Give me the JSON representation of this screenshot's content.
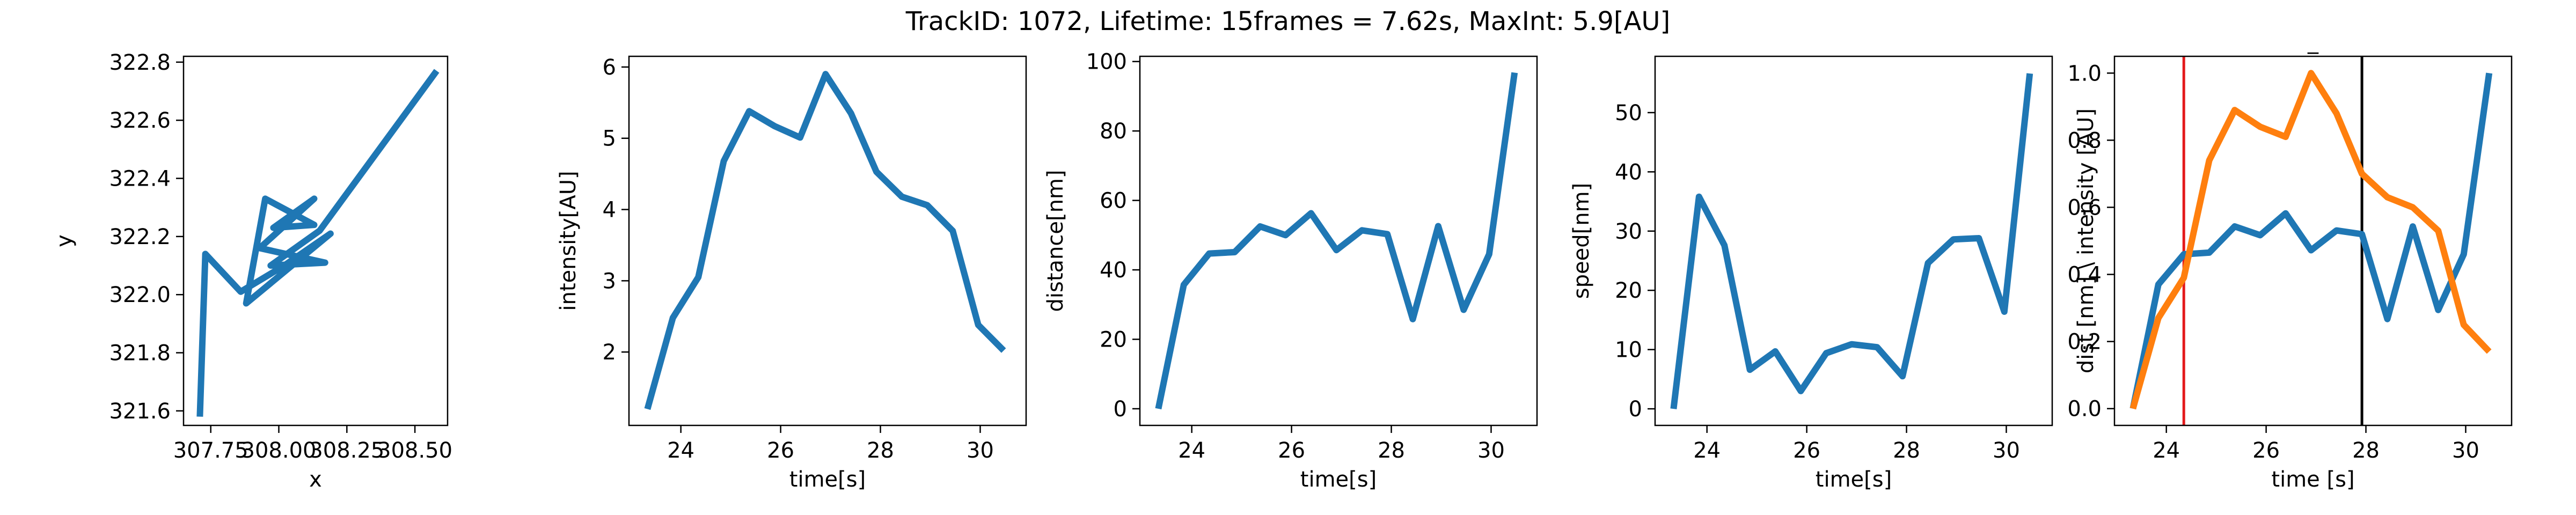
{
  "figure": {
    "title": "TrackID: 1072, Lifetime: 15frames = 7.62s, MaxInt: 5.9[AU]"
  },
  "colors": {
    "series_blue": "#1f77b4",
    "series_orange": "#ff7f0e",
    "line_red": "#e31a1c",
    "line_black": "#000000"
  },
  "chart_data": [
    {
      "type": "line",
      "title": "",
      "xlabel": "x",
      "ylabel": "y",
      "xlim": [
        307.65,
        308.62
      ],
      "ylim": [
        321.55,
        322.82
      ],
      "xticks": [
        "307.75",
        "308.00",
        "308.25",
        "308.50"
      ],
      "xtick_values": [
        307.75,
        308.0,
        308.25,
        308.5
      ],
      "yticks": [
        "321.6",
        "321.8",
        "322.0",
        "322.2",
        "322.4",
        "322.6",
        "322.8"
      ],
      "ytick_values": [
        321.6,
        321.8,
        322.0,
        322.2,
        322.4,
        322.6,
        322.8
      ],
      "series": [
        {
          "x": [
            307.71,
            307.73,
            307.86,
            308.02,
            308.19,
            307.88,
            307.95,
            308.13,
            307.98,
            308.13,
            307.93,
            308.17,
            307.97,
            308.15,
            308.58
          ],
          "y": [
            321.58,
            322.14,
            322.01,
            322.1,
            322.21,
            321.97,
            322.33,
            322.24,
            322.23,
            322.33,
            322.16,
            322.11,
            322.1,
            322.22,
            322.77
          ]
        }
      ]
    },
    {
      "type": "line",
      "title": "",
      "xlabel": "time[s]",
      "ylabel": "intensity[AU]",
      "xlim": [
        22.96,
        30.92
      ],
      "ylim": [
        0.97,
        6.15
      ],
      "xticks": [
        "24",
        "26",
        "28",
        "30"
      ],
      "xtick_values": [
        24,
        26,
        28,
        30
      ],
      "yticks": [
        "2",
        "3",
        "4",
        "5",
        "6"
      ],
      "ytick_values": [
        2,
        3,
        4,
        5,
        6
      ],
      "series": [
        {
          "x": [
            23.33,
            23.84,
            24.35,
            24.86,
            25.37,
            25.88,
            26.39,
            26.9,
            27.41,
            27.92,
            28.43,
            28.94,
            29.45,
            29.96,
            30.47
          ],
          "y": [
            1.2,
            2.48,
            3.05,
            4.68,
            5.38,
            5.17,
            5.01,
            5.9,
            5.35,
            4.53,
            4.18,
            4.06,
            3.7,
            2.38,
            2.02
          ]
        }
      ]
    },
    {
      "type": "line",
      "title": "",
      "xlabel": "time[s]",
      "ylabel": "distance[nm]",
      "xlim": [
        22.96,
        30.92
      ],
      "ylim": [
        -4.8,
        101.5
      ],
      "xticks": [
        "24",
        "26",
        "28",
        "30"
      ],
      "xtick_values": [
        24,
        26,
        28,
        30
      ],
      "yticks": [
        "0",
        "20",
        "40",
        "60",
        "80",
        "100"
      ],
      "ytick_values": [
        0,
        20,
        40,
        60,
        80,
        100
      ],
      "series": [
        {
          "x": [
            23.33,
            23.84,
            24.35,
            24.86,
            25.37,
            25.88,
            26.39,
            26.9,
            27.41,
            27.92,
            28.43,
            28.94,
            29.45,
            29.96,
            30.47
          ],
          "y": [
            0,
            35.7,
            44.7,
            45.1,
            52.5,
            50.0,
            56.3,
            45.7,
            51.4,
            50.3,
            25.8,
            52.6,
            28.5,
            44.5,
            96.8
          ]
        }
      ]
    },
    {
      "type": "line",
      "title": "",
      "xlabel": "time[s]",
      "ylabel": "speed[nm]",
      "xlim": [
        22.96,
        30.92
      ],
      "ylim": [
        -2.8,
        59.5
      ],
      "xticks": [
        "24",
        "26",
        "28",
        "30"
      ],
      "xtick_values": [
        24,
        26,
        28,
        30
      ],
      "yticks": [
        "0",
        "10",
        "20",
        "30",
        "40",
        "50"
      ],
      "ytick_values": [
        0,
        10,
        20,
        30,
        40,
        50
      ],
      "series": [
        {
          "x": [
            23.33,
            23.84,
            24.35,
            24.86,
            25.37,
            25.88,
            26.39,
            26.9,
            27.41,
            27.92,
            28.43,
            28.94,
            29.45,
            29.96,
            30.47
          ],
          "y": [
            0,
            35.8,
            27.6,
            6.6,
            9.7,
            3.0,
            9.4,
            10.9,
            10.4,
            5.5,
            24.6,
            28.6,
            28.8,
            16.4,
            56.6
          ]
        }
      ]
    },
    {
      "type": "line",
      "title": "_",
      "xlabel": "time [s]",
      "ylabel": "dist [nm] \\ intensity [AU]",
      "xlim": [
        22.96,
        30.92
      ],
      "ylim": [
        -0.05,
        1.05
      ],
      "xticks": [
        "24",
        "26",
        "28",
        "30"
      ],
      "xtick_values": [
        24,
        26,
        28,
        30
      ],
      "yticks": [
        "0.0",
        "0.2",
        "0.4",
        "0.6",
        "0.8",
        "1.0"
      ],
      "ytick_values": [
        0,
        0.2,
        0.4,
        0.6,
        0.8,
        1.0
      ],
      "vlines": [
        {
          "x": 24.35,
          "color": "#e31a1c"
        },
        {
          "x": 27.92,
          "color": "#000000"
        }
      ],
      "series": [
        {
          "color": "#1f77b4",
          "x": [
            23.33,
            23.84,
            24.35,
            24.86,
            25.37,
            25.88,
            26.39,
            26.9,
            27.41,
            27.92,
            28.43,
            28.94,
            29.45,
            29.96,
            30.47
          ],
          "y": [
            0,
            0.37,
            0.46,
            0.465,
            0.543,
            0.517,
            0.582,
            0.472,
            0.531,
            0.52,
            0.267,
            0.543,
            0.294,
            0.46,
            1.0
          ]
        },
        {
          "color": "#ff7f0e",
          "x": [
            23.33,
            23.84,
            24.35,
            24.86,
            25.37,
            25.88,
            26.39,
            26.9,
            27.41,
            27.92,
            28.43,
            28.94,
            29.45,
            29.96,
            30.47
          ],
          "y": [
            0,
            0.27,
            0.39,
            0.74,
            0.89,
            0.84,
            0.81,
            1.0,
            0.88,
            0.7,
            0.63,
            0.6,
            0.53,
            0.25,
            0.17
          ]
        }
      ]
    }
  ]
}
